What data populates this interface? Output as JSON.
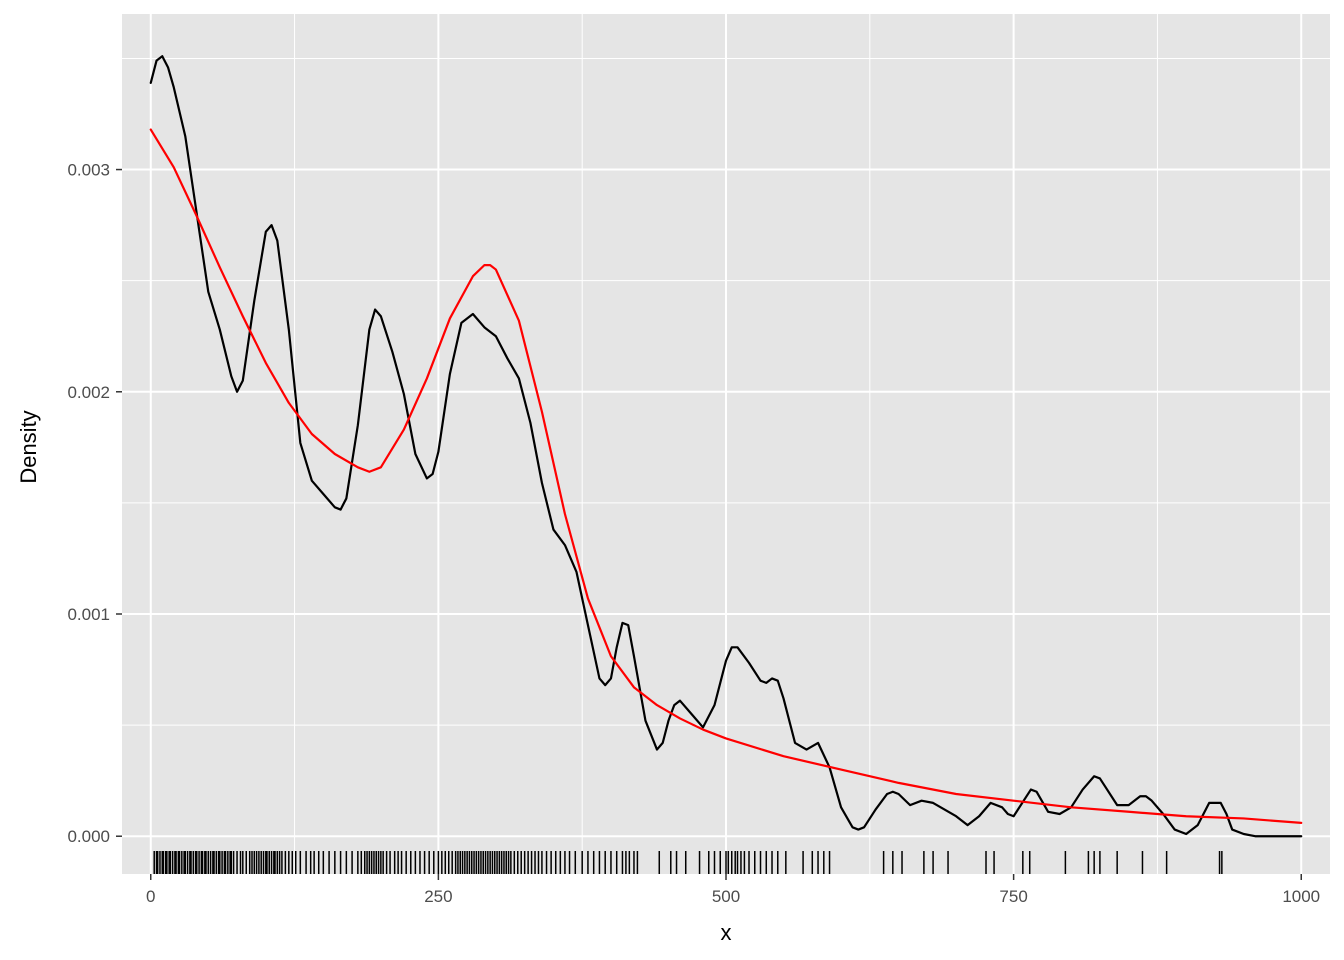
{
  "chart_data": {
    "type": "line",
    "title": "",
    "xlabel": "x",
    "ylabel": "Density",
    "xlim": [
      -25,
      1025
    ],
    "ylim": [
      -0.00017,
      0.0037
    ],
    "x_ticks": [
      0,
      250,
      500,
      750,
      1000
    ],
    "x_tick_labels": [
      "0",
      "250",
      "500",
      "750",
      "1000"
    ],
    "y_ticks": [
      0,
      0.001,
      0.002,
      0.003
    ],
    "y_tick_labels": [
      "0.000",
      "0.001",
      "0.002",
      "0.003"
    ],
    "grid": true,
    "background": "#e5e5e5",
    "grid_color": "#ffffff",
    "series": [
      {
        "role": "kernel density estimate",
        "color": "#000000",
        "x": [
          0,
          5,
          10,
          15,
          20,
          30,
          40,
          50,
          60,
          70,
          75,
          80,
          90,
          100,
          105,
          110,
          120,
          130,
          140,
          150,
          160,
          165,
          170,
          180,
          190,
          195,
          200,
          210,
          220,
          230,
          240,
          245,
          250,
          260,
          270,
          280,
          290,
          300,
          310,
          320,
          330,
          340,
          350,
          360,
          370,
          380,
          390,
          395,
          400,
          405,
          410,
          415,
          420,
          430,
          440,
          445,
          450,
          455,
          460,
          470,
          480,
          490,
          500,
          505,
          510,
          520,
          530,
          535,
          540,
          545,
          550,
          560,
          570,
          580,
          590,
          600,
          610,
          615,
          620,
          630,
          640,
          645,
          650,
          660,
          670,
          680,
          690,
          700,
          710,
          720,
          730,
          740,
          745,
          750,
          760,
          765,
          770,
          780,
          790,
          800,
          810,
          820,
          825,
          830,
          840,
          850,
          860,
          865,
          870,
          880,
          890,
          900,
          910,
          920,
          930,
          935,
          940,
          950,
          960,
          970,
          980,
          990,
          1000
        ],
        "y": [
          0.00339,
          0.00349,
          0.00351,
          0.00346,
          0.00337,
          0.00315,
          0.0028,
          0.00245,
          0.00228,
          0.00207,
          0.002,
          0.00205,
          0.00241,
          0.00272,
          0.00275,
          0.00268,
          0.00228,
          0.00177,
          0.0016,
          0.00154,
          0.00148,
          0.00147,
          0.00152,
          0.00185,
          0.00228,
          0.00237,
          0.00234,
          0.00218,
          0.00199,
          0.00172,
          0.00161,
          0.00163,
          0.00173,
          0.00208,
          0.00231,
          0.00235,
          0.00229,
          0.00225,
          0.00215,
          0.00206,
          0.00186,
          0.00159,
          0.00138,
          0.00131,
          0.00119,
          0.00095,
          0.00071,
          0.00068,
          0.00071,
          0.00085,
          0.00096,
          0.00095,
          0.00081,
          0.00052,
          0.00039,
          0.00042,
          0.00052,
          0.00059,
          0.00061,
          0.00055,
          0.00049,
          0.00059,
          0.00079,
          0.00085,
          0.00085,
          0.00078,
          0.0007,
          0.00069,
          0.00071,
          0.0007,
          0.00062,
          0.00042,
          0.00039,
          0.00042,
          0.00031,
          0.00013,
          4e-05,
          3e-05,
          4e-05,
          0.00012,
          0.00019,
          0.0002,
          0.00019,
          0.00014,
          0.00016,
          0.00015,
          0.00012,
          9e-05,
          5e-05,
          9e-05,
          0.00015,
          0.00013,
          0.0001,
          9e-05,
          0.00017,
          0.00021,
          0.0002,
          0.00011,
          0.0001,
          0.00013,
          0.00021,
          0.00027,
          0.00026,
          0.00022,
          0.00014,
          0.00014,
          0.00018,
          0.00018,
          0.00016,
          0.0001,
          3e-05,
          1e-05,
          5e-05,
          0.00015,
          0.00015,
          0.0001,
          3e-05,
          1e-05,
          0.0,
          0.0,
          0.0,
          0.0,
          0.0
        ]
      },
      {
        "role": "fitted density",
        "color": "#ff0000",
        "x": [
          0,
          20,
          40,
          60,
          80,
          100,
          120,
          140,
          160,
          180,
          190,
          200,
          220,
          240,
          260,
          280,
          290,
          295,
          300,
          320,
          340,
          360,
          380,
          400,
          420,
          440,
          460,
          480,
          500,
          550,
          600,
          650,
          700,
          750,
          800,
          850,
          900,
          950,
          1000
        ],
        "y": [
          0.00318,
          0.00301,
          0.00279,
          0.00256,
          0.00234,
          0.00213,
          0.00195,
          0.00181,
          0.00172,
          0.00166,
          0.00164,
          0.00166,
          0.00183,
          0.00206,
          0.00233,
          0.00252,
          0.00257,
          0.00257,
          0.00255,
          0.00232,
          0.00191,
          0.00145,
          0.00107,
          0.00081,
          0.00067,
          0.00059,
          0.00053,
          0.00048,
          0.00044,
          0.00036,
          0.0003,
          0.00024,
          0.00019,
          0.00016,
          0.00013,
          0.00011,
          9e-05,
          8e-05,
          6e-05
        ]
      }
    ],
    "rug": {
      "color": "#000000",
      "x": [
        3,
        5,
        6,
        8,
        10,
        11,
        13,
        14,
        16,
        17,
        19,
        21,
        22,
        24,
        25,
        27,
        29,
        30,
        32,
        34,
        35,
        37,
        39,
        40,
        42,
        44,
        45,
        47,
        48,
        50,
        52,
        54,
        55,
        57,
        59,
        60,
        62,
        64,
        65,
        67,
        69,
        70,
        72,
        75,
        78,
        80,
        83,
        86,
        88,
        90,
        92,
        94,
        96,
        98,
        100,
        101,
        103,
        105,
        107,
        108,
        110,
        112,
        114,
        117,
        120,
        123,
        126,
        130,
        135,
        139,
        142,
        146,
        150,
        155,
        160,
        165,
        170,
        175,
        180,
        183,
        186,
        188,
        190,
        192,
        194,
        196,
        198,
        200,
        202,
        205,
        208,
        212,
        215,
        218,
        222,
        226,
        230,
        234,
        238,
        242,
        246,
        250,
        253,
        256,
        259,
        262,
        265,
        267,
        269,
        271,
        273,
        275,
        277,
        279,
        281,
        283,
        285,
        287,
        289,
        291,
        293,
        295,
        297,
        299,
        301,
        303,
        305,
        307,
        309,
        311,
        313,
        316,
        319,
        322,
        325,
        328,
        331,
        334,
        337,
        340,
        344,
        348,
        352,
        356,
        360,
        364,
        369,
        375,
        380,
        385,
        390,
        395,
        400,
        405,
        410,
        413,
        416,
        420,
        423,
        442,
        452,
        457,
        465,
        477,
        485,
        490,
        495,
        500,
        502,
        505,
        508,
        510,
        513,
        516,
        520,
        525,
        530,
        535,
        540,
        545,
        552,
        567,
        575,
        580,
        585,
        590,
        637,
        645,
        653,
        672,
        680,
        693,
        726,
        733,
        758,
        764,
        795,
        815,
        820,
        825,
        840,
        862,
        883,
        929,
        931
      ]
    }
  }
}
